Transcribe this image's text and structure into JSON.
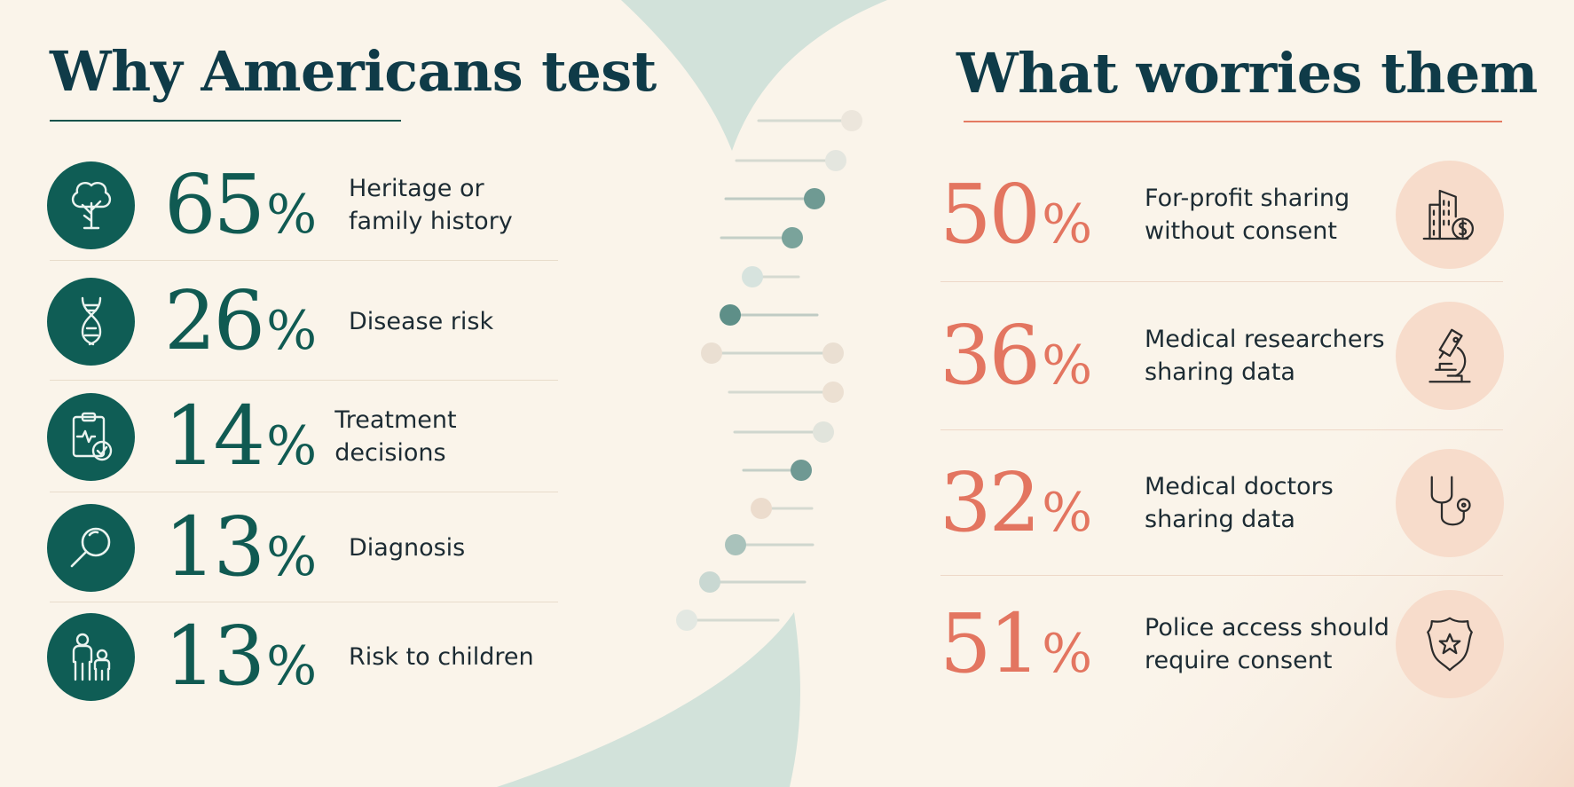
{
  "left": {
    "title": "Why Americans test",
    "items": [
      {
        "value": "65",
        "unit": "%",
        "label_lines": [
          "Heritage or",
          "family history"
        ],
        "icon": "family-tree-icon"
      },
      {
        "value": "26",
        "unit": "%",
        "label_lines": [
          "Disease risk"
        ],
        "icon": "dna-icon"
      },
      {
        "value": "14",
        "unit": "%",
        "label_lines": [
          "Treatment decisions"
        ],
        "icon": "clipboard-check-icon"
      },
      {
        "value": "13",
        "unit": "%",
        "label_lines": [
          "Diagnosis"
        ],
        "icon": "magnifier-icon"
      },
      {
        "value": "13",
        "unit": "%",
        "label_lines": [
          "Risk to children"
        ],
        "icon": "parent-child-icon"
      }
    ]
  },
  "right": {
    "title": "What worries them",
    "items": [
      {
        "value": "50",
        "unit": "%",
        "label_lines": [
          "For-profit sharing",
          "without consent"
        ],
        "icon": "building-dollar-icon"
      },
      {
        "value": "36",
        "unit": "%",
        "label_lines": [
          "Medical researchers",
          "sharing data"
        ],
        "icon": "microscope-icon"
      },
      {
        "value": "32",
        "unit": "%",
        "label_lines": [
          "Medical doctors",
          "sharing data"
        ],
        "icon": "stethoscope-icon"
      },
      {
        "value": "51",
        "unit": "%",
        "label_lines": [
          "Police access should",
          "require consent"
        ],
        "icon": "police-badge-icon"
      }
    ]
  },
  "colors": {
    "background": "#faf4ea",
    "left_accent": "#105a52",
    "right_accent": "#e37560",
    "title_text": "#0f3b48",
    "right_icon_bg": "#f7dccb"
  }
}
